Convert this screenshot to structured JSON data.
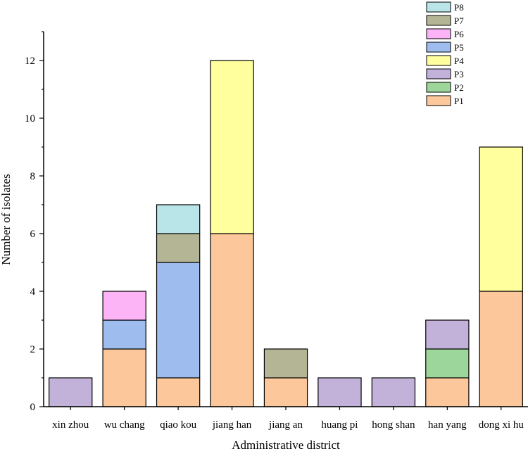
{
  "chart_data": {
    "type": "bar",
    "stacked": true,
    "title": "",
    "xlabel": "Administrative district",
    "ylabel": "Number of isolates",
    "ylim": [
      0,
      13
    ],
    "yticks": [
      0,
      2,
      4,
      6,
      8,
      10,
      12
    ],
    "categories": [
      "xin zhou",
      "wu chang",
      "qiao kou",
      "jiang han",
      "jiang an",
      "huang pi",
      "hong shan",
      "han yang",
      "dong xi hu"
    ],
    "series": [
      {
        "name": "P1",
        "color": "#FCC79A",
        "values": [
          0,
          2,
          1,
          6,
          1,
          0,
          0,
          1,
          4
        ]
      },
      {
        "name": "P2",
        "color": "#9DD69A",
        "values": [
          0,
          0,
          0,
          0,
          0,
          0,
          0,
          1,
          0
        ]
      },
      {
        "name": "P3",
        "color": "#C2B2D9",
        "values": [
          1,
          0,
          0,
          0,
          0,
          1,
          1,
          1,
          0
        ]
      },
      {
        "name": "P4",
        "color": "#FFFF9E",
        "values": [
          0,
          0,
          0,
          6,
          0,
          0,
          0,
          0,
          5
        ]
      },
      {
        "name": "P5",
        "color": "#9EBCEE",
        "values": [
          0,
          1,
          4,
          0,
          0,
          0,
          0,
          0,
          0
        ]
      },
      {
        "name": "P6",
        "color": "#FDB4F6",
        "values": [
          0,
          1,
          0,
          0,
          0,
          0,
          0,
          0,
          0
        ]
      },
      {
        "name": "P7",
        "color": "#B4B595",
        "values": [
          0,
          0,
          1,
          0,
          1,
          0,
          0,
          0,
          0
        ]
      },
      {
        "name": "P8",
        "color": "#B9E5E9",
        "values": [
          0,
          0,
          1,
          0,
          0,
          0,
          0,
          0,
          0
        ]
      }
    ],
    "legend_position": "top-right",
    "legend_order": [
      "P8",
      "P7",
      "P6",
      "P5",
      "P4",
      "P3",
      "P2",
      "P1"
    ]
  }
}
